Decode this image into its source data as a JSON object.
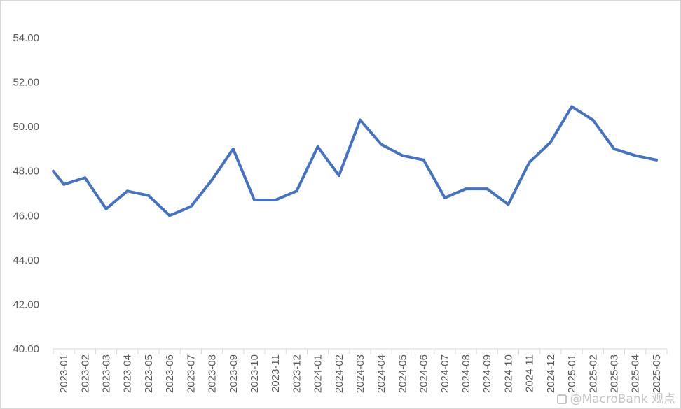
{
  "chart_data": {
    "type": "line",
    "title": "",
    "xlabel": "",
    "ylabel": "",
    "ylim": [
      40,
      54
    ],
    "yticks": [
      "40.00",
      "42.00",
      "44.00",
      "46.00",
      "48.00",
      "50.00",
      "52.00",
      "54.00"
    ],
    "grid": false,
    "legend": "none",
    "categories": [
      "2023-01",
      "2023-02",
      "2023-03",
      "2023-04",
      "2023-05",
      "2023-06",
      "2023-07",
      "2023-08",
      "2023-09",
      "2023-10",
      "2023-11",
      "2023-12",
      "2024-01",
      "2024-02",
      "2024-03",
      "2024-04",
      "2024-05",
      "2024-06",
      "2024-07",
      "2024-08",
      "2024-09",
      "2024-10",
      "2024-11",
      "2024-12",
      "2025-01",
      "2025-02",
      "2025-03",
      "2025-04",
      "2025-05"
    ],
    "series": [
      {
        "color": "#4472c4",
        "values": [
          47.4,
          47.7,
          46.3,
          47.1,
          46.9,
          46.0,
          46.4,
          47.6,
          49.0,
          46.7,
          46.7,
          47.1,
          49.1,
          47.8,
          50.3,
          49.2,
          48.7,
          48.5,
          46.8,
          47.2,
          47.2,
          46.5,
          48.4,
          49.3,
          50.9,
          50.3,
          49.0,
          48.7,
          48.5
        ],
        "start_value": 48.0
      }
    ]
  },
  "watermark": {
    "text": "@MacroBank 观点"
  }
}
